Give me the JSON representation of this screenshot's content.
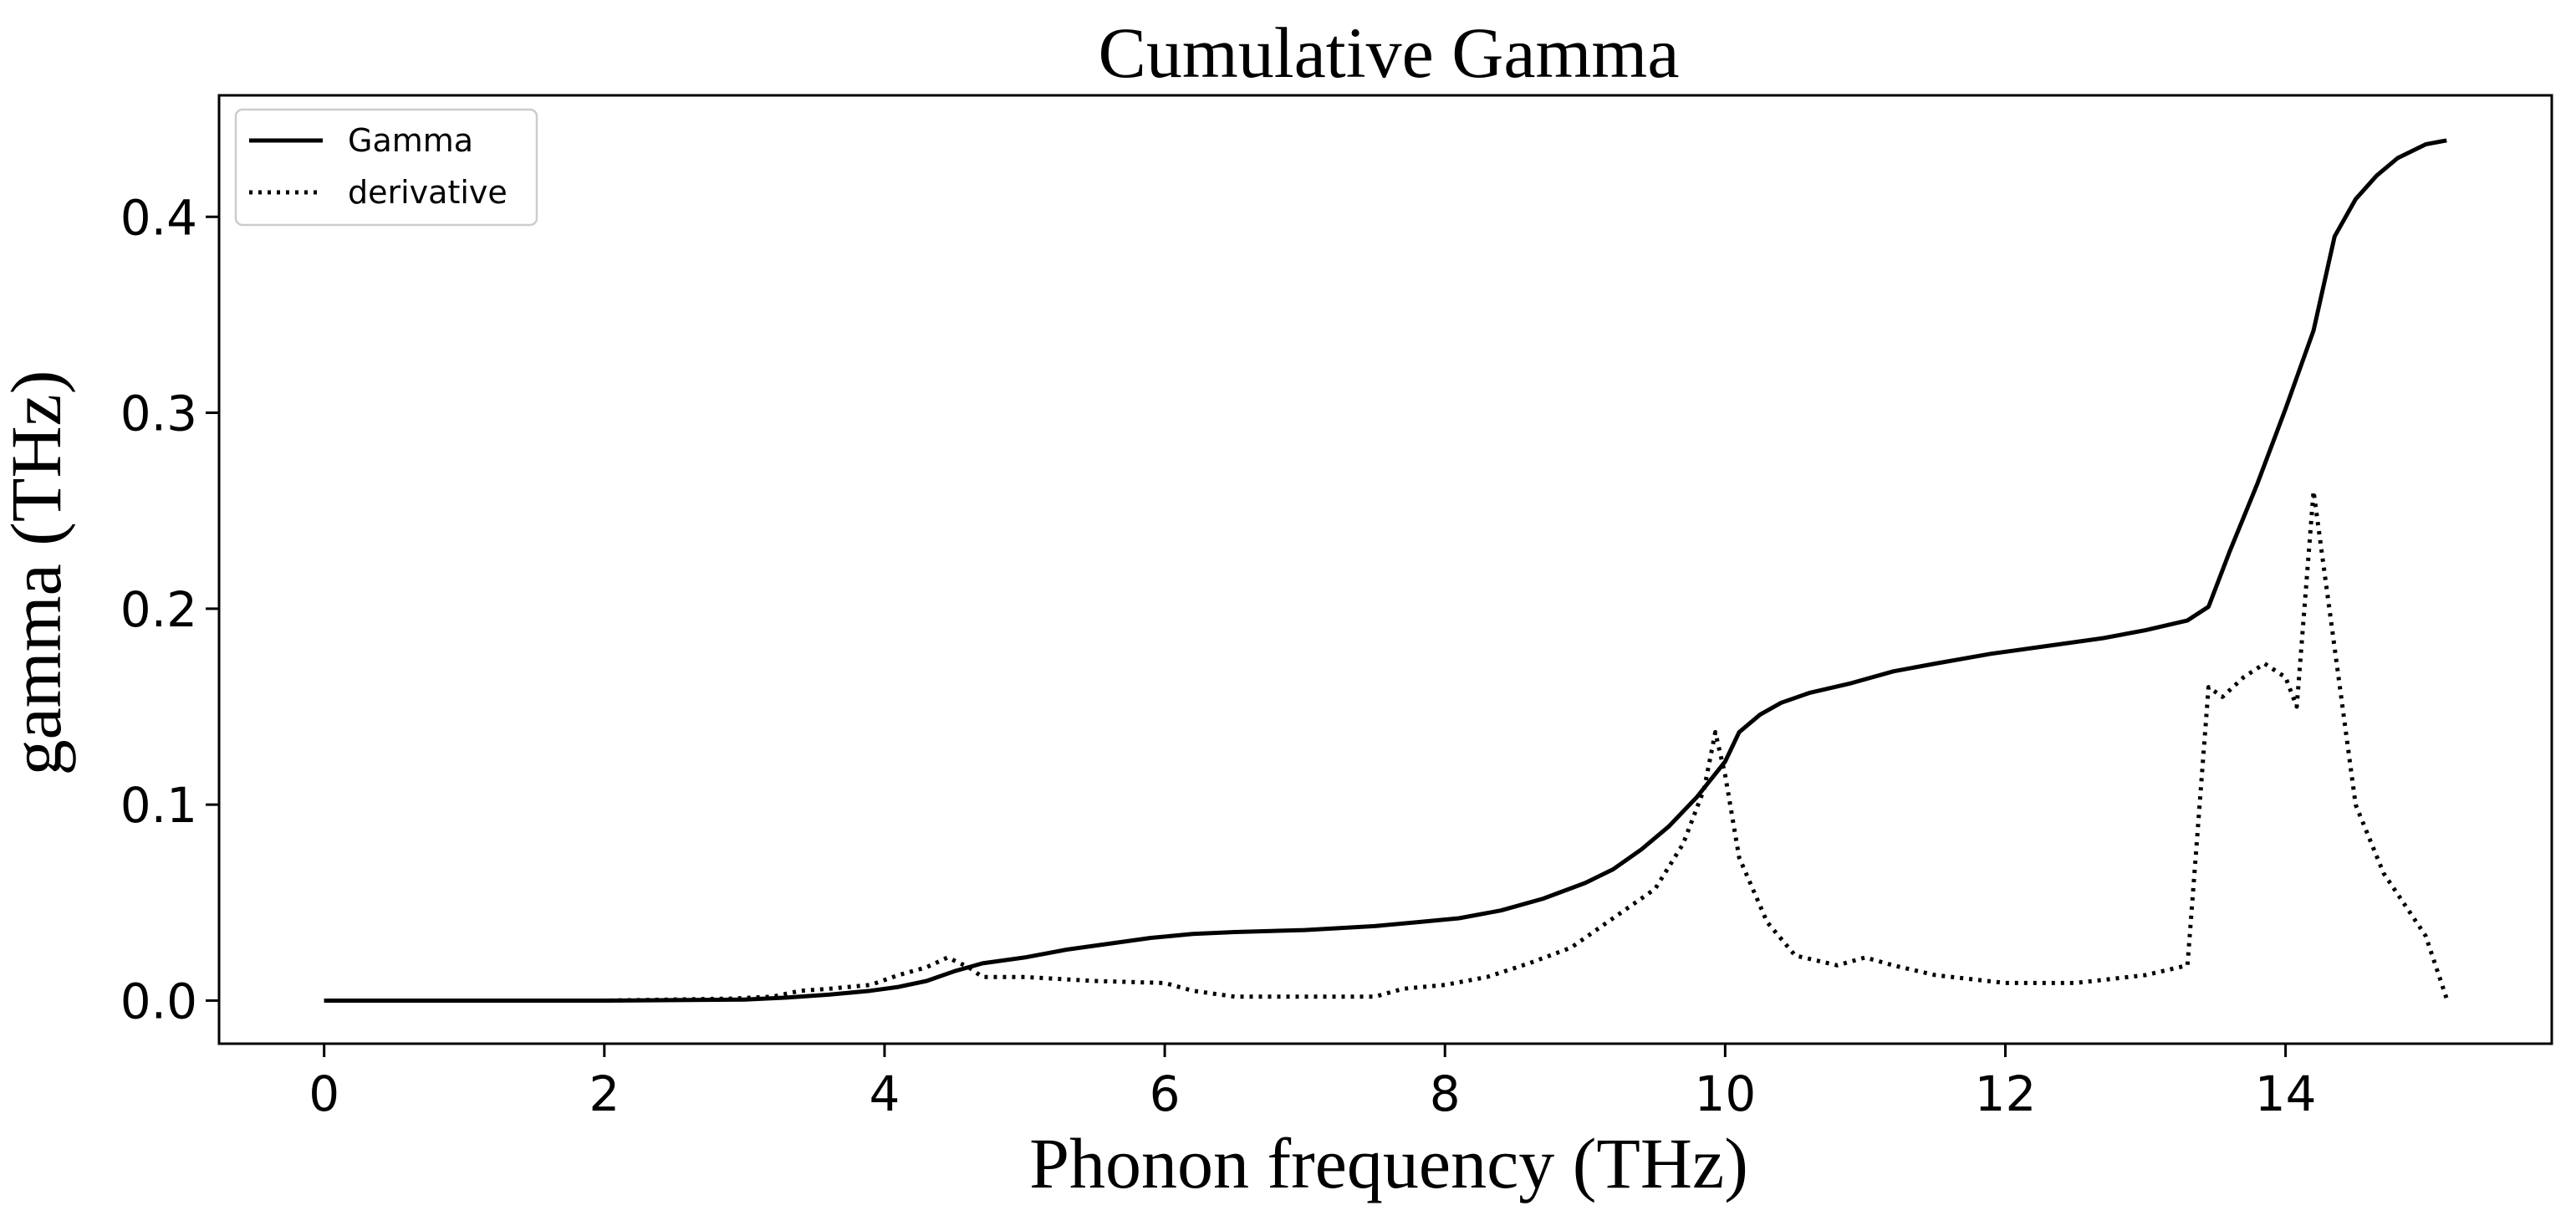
{
  "chart_data": {
    "type": "line",
    "title": "Cumulative Gamma",
    "xlabel": "Phonon frequency (THz)",
    "ylabel": "gamma (THz)",
    "xlim": [
      -0.75,
      15.9
    ],
    "ylim": [
      -0.022,
      0.462
    ],
    "xticks": [
      0,
      2,
      4,
      6,
      8,
      10,
      12,
      14
    ],
    "yticks": [
      0.0,
      0.1,
      0.2,
      0.3,
      0.4
    ],
    "xtick_labels": [
      "0",
      "2",
      "4",
      "6",
      "8",
      "10",
      "12",
      "14"
    ],
    "ytick_labels": [
      "0.0",
      "0.1",
      "0.2",
      "0.3",
      "0.4"
    ],
    "grid": false,
    "legend_position": "top-left",
    "series": [
      {
        "name": "Gamma",
        "style": "solid",
        "color": "#000000",
        "points": [
          [
            0,
            0
          ],
          [
            1,
            0
          ],
          [
            2,
            0
          ],
          [
            3,
            0.0005
          ],
          [
            3.3,
            0.0015
          ],
          [
            3.6,
            0.003
          ],
          [
            3.9,
            0.005
          ],
          [
            4.1,
            0.007
          ],
          [
            4.3,
            0.01
          ],
          [
            4.5,
            0.015
          ],
          [
            4.7,
            0.019
          ],
          [
            5.0,
            0.022
          ],
          [
            5.3,
            0.026
          ],
          [
            5.6,
            0.029
          ],
          [
            5.9,
            0.032
          ],
          [
            6.2,
            0.034
          ],
          [
            6.5,
            0.035
          ],
          [
            7.0,
            0.036
          ],
          [
            7.5,
            0.038
          ],
          [
            7.8,
            0.04
          ],
          [
            8.1,
            0.042
          ],
          [
            8.4,
            0.046
          ],
          [
            8.7,
            0.052
          ],
          [
            9.0,
            0.06
          ],
          [
            9.2,
            0.067
          ],
          [
            9.4,
            0.077
          ],
          [
            9.6,
            0.089
          ],
          [
            9.8,
            0.104
          ],
          [
            10.0,
            0.122
          ],
          [
            10.1,
            0.137
          ],
          [
            10.25,
            0.146
          ],
          [
            10.4,
            0.152
          ],
          [
            10.6,
            0.157
          ],
          [
            10.9,
            0.162
          ],
          [
            11.2,
            0.168
          ],
          [
            11.5,
            0.172
          ],
          [
            11.9,
            0.177
          ],
          [
            12.3,
            0.181
          ],
          [
            12.7,
            0.185
          ],
          [
            13.0,
            0.189
          ],
          [
            13.3,
            0.194
          ],
          [
            13.45,
            0.201
          ],
          [
            13.6,
            0.229
          ],
          [
            13.8,
            0.264
          ],
          [
            14.0,
            0.302
          ],
          [
            14.2,
            0.342
          ],
          [
            14.35,
            0.39
          ],
          [
            14.5,
            0.409
          ],
          [
            14.65,
            0.421
          ],
          [
            14.8,
            0.43
          ],
          [
            15.0,
            0.437
          ],
          [
            15.15,
            0.439
          ]
        ]
      },
      {
        "name": "derivative",
        "style": "dotted",
        "color": "#000000",
        "points": [
          [
            0,
            0
          ],
          [
            1,
            0
          ],
          [
            2,
            0
          ],
          [
            2.9,
            0.001
          ],
          [
            3.2,
            0.002
          ],
          [
            3.4,
            0.005
          ],
          [
            3.6,
            0.006
          ],
          [
            3.9,
            0.008
          ],
          [
            4.1,
            0.013
          ],
          [
            4.3,
            0.017
          ],
          [
            4.45,
            0.022
          ],
          [
            4.6,
            0.017
          ],
          [
            4.7,
            0.012
          ],
          [
            5.0,
            0.012
          ],
          [
            5.5,
            0.01
          ],
          [
            6.0,
            0.009
          ],
          [
            6.2,
            0.005
          ],
          [
            6.5,
            0.002
          ],
          [
            7.0,
            0.002
          ],
          [
            7.5,
            0.002
          ],
          [
            7.7,
            0.006
          ],
          [
            8.0,
            0.008
          ],
          [
            8.3,
            0.012
          ],
          [
            8.6,
            0.019
          ],
          [
            8.9,
            0.027
          ],
          [
            9.2,
            0.042
          ],
          [
            9.5,
            0.057
          ],
          [
            9.7,
            0.08
          ],
          [
            9.85,
            0.108
          ],
          [
            9.93,
            0.137
          ],
          [
            10.0,
            0.115
          ],
          [
            10.1,
            0.073
          ],
          [
            10.3,
            0.04
          ],
          [
            10.5,
            0.023
          ],
          [
            10.8,
            0.018
          ],
          [
            11.0,
            0.022
          ],
          [
            11.2,
            0.018
          ],
          [
            11.5,
            0.013
          ],
          [
            12.0,
            0.009
          ],
          [
            12.5,
            0.009
          ],
          [
            13.0,
            0.013
          ],
          [
            13.3,
            0.018
          ],
          [
            13.45,
            0.16
          ],
          [
            13.55,
            0.155
          ],
          [
            13.7,
            0.165
          ],
          [
            13.85,
            0.172
          ],
          [
            14.0,
            0.165
          ],
          [
            14.08,
            0.15
          ],
          [
            14.2,
            0.26
          ],
          [
            14.35,
            0.18
          ],
          [
            14.5,
            0.1
          ],
          [
            14.7,
            0.065
          ],
          [
            15.0,
            0.033
          ],
          [
            15.15,
            0.001
          ]
        ]
      }
    ]
  }
}
